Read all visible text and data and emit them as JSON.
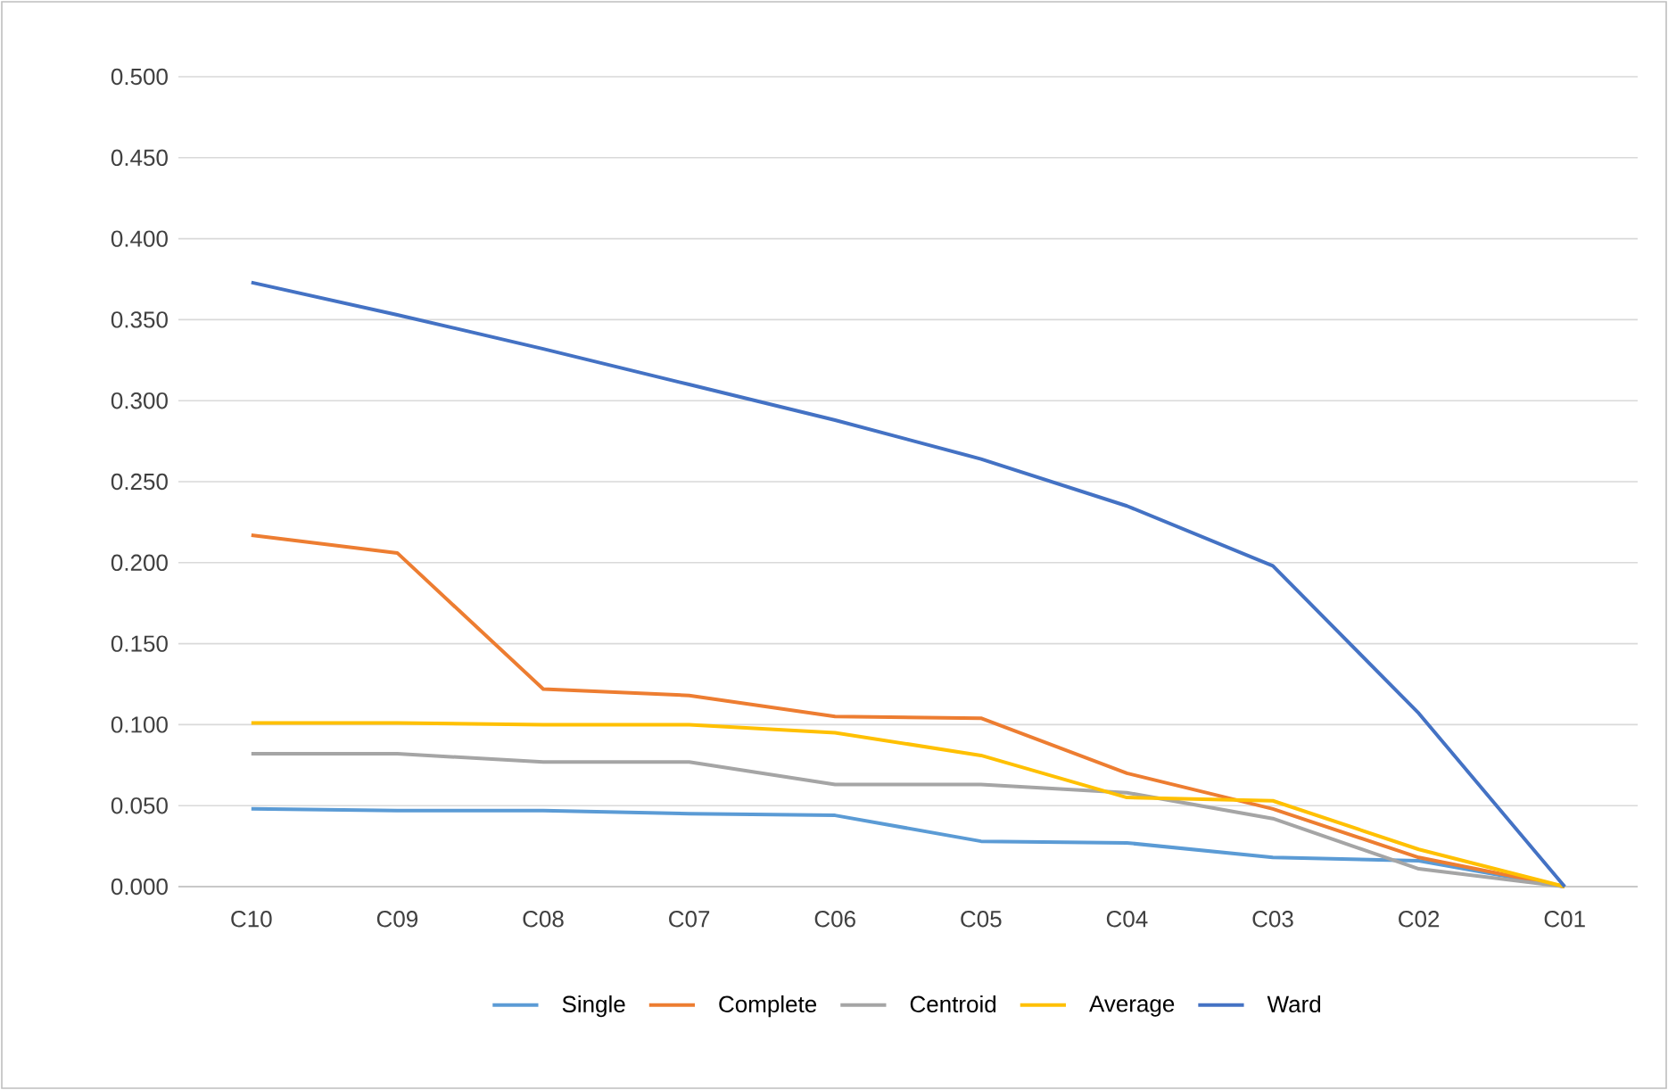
{
  "chart_data": {
    "type": "line",
    "categories": [
      "C10",
      "C09",
      "C08",
      "C07",
      "C06",
      "C05",
      "C04",
      "C03",
      "C02",
      "C01"
    ],
    "series": [
      {
        "name": "Single",
        "color": "#5b9bd5",
        "values": [
          0.048,
          0.047,
          0.047,
          0.045,
          0.044,
          0.028,
          0.027,
          0.018,
          0.016,
          0.0
        ]
      },
      {
        "name": "Complete",
        "color": "#ed7d31",
        "values": [
          0.217,
          0.206,
          0.122,
          0.118,
          0.105,
          0.104,
          0.07,
          0.048,
          0.018,
          0.0
        ]
      },
      {
        "name": "Centroid",
        "color": "#a5a5a5",
        "values": [
          0.082,
          0.082,
          0.077,
          0.077,
          0.063,
          0.063,
          0.058,
          0.042,
          0.011,
          0.0
        ]
      },
      {
        "name": "Average",
        "color": "#ffc000",
        "values": [
          0.101,
          0.101,
          0.1,
          0.1,
          0.095,
          0.081,
          0.055,
          0.053,
          0.023,
          0.0
        ]
      },
      {
        "name": "Ward",
        "color": "#4472c4",
        "values": [
          0.373,
          0.353,
          0.332,
          0.31,
          0.288,
          0.264,
          0.235,
          0.198,
          0.107,
          0.0
        ]
      }
    ],
    "ylim": [
      0,
      0.5
    ],
    "yticks": [
      {
        "value": 0,
        "label": "0.000"
      },
      {
        "value": 0.05,
        "label": "0.050"
      },
      {
        "value": 0.1,
        "label": "0.100"
      },
      {
        "value": 0.15,
        "label": "0.150"
      },
      {
        "value": 0.2,
        "label": "0.200"
      },
      {
        "value": 0.25,
        "label": "0.250"
      },
      {
        "value": 0.3,
        "label": "0.300"
      },
      {
        "value": 0.35,
        "label": "0.350"
      },
      {
        "value": 0.4,
        "label": "0.400"
      },
      {
        "value": 0.45,
        "label": "0.450"
      },
      {
        "value": 0.5,
        "label": "0.500"
      }
    ],
    "grid": "y",
    "legend": "bottom",
    "marker": "none",
    "line_style": "solid"
  }
}
